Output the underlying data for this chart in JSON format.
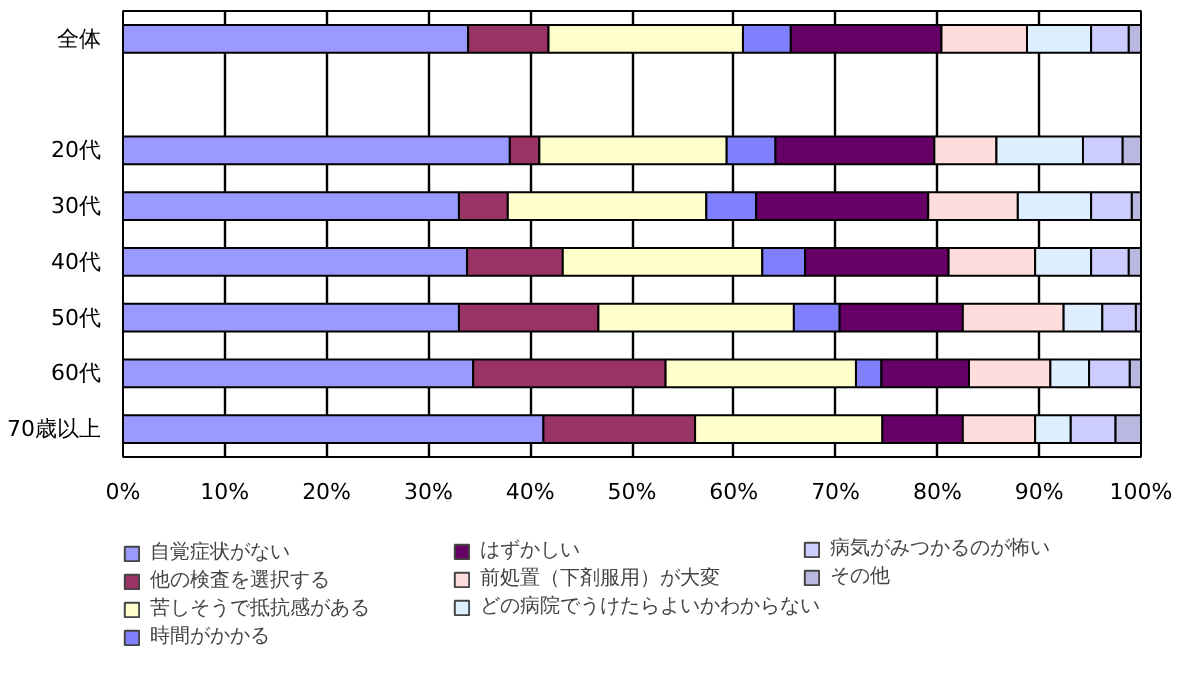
{
  "chart_data": {
    "type": "bar",
    "orientation": "horizontal",
    "stacked": true,
    "categories": [
      "全体",
      null,
      "20代",
      "30代",
      "40代",
      "50代",
      "60代",
      "70歳以上"
    ],
    "series": [
      {
        "name": "自覚症状がない",
        "color": "#9999ff",
        "values": [
          33.9,
          null,
          38.0,
          33.0,
          33.8,
          33.0,
          34.4,
          41.3
        ]
      },
      {
        "name": "他の検査を選択する",
        "color": "#993366",
        "values": [
          7.9,
          null,
          2.9,
          4.8,
          9.4,
          13.7,
          18.9,
          14.9
        ]
      },
      {
        "name": "苦しそうで抵抗感がある",
        "color": "#ffffcc",
        "values": [
          19.1,
          null,
          18.4,
          19.5,
          19.6,
          19.2,
          18.7,
          18.4
        ]
      },
      {
        "name": "時間がかかる",
        "color": "#8080ff",
        "values": [
          4.7,
          null,
          4.8,
          4.9,
          4.2,
          4.5,
          2.5,
          null
        ]
      },
      {
        "name": "はずかしい",
        "color": "#660066",
        "values": [
          14.8,
          null,
          15.6,
          16.9,
          14.1,
          12.1,
          8.6,
          7.9
        ]
      },
      {
        "name": "前処置（下剤服用）が大変",
        "color": "#ffdddd",
        "values": [
          8.4,
          null,
          6.1,
          8.8,
          8.5,
          9.9,
          8.0,
          7.1
        ]
      },
      {
        "name": "どの病院でうけたらよいかわからない",
        "color": "#ddeeff",
        "values": [
          6.3,
          null,
          8.5,
          7.2,
          5.5,
          3.8,
          3.8,
          3.5
        ]
      },
      {
        "name": "病気がみつかるのが怖い",
        "color": "#ccccff",
        "values": [
          3.7,
          null,
          3.9,
          4.0,
          3.7,
          3.3,
          4.0,
          4.4
        ]
      },
      {
        "name": "その他",
        "color": "#b8b8e0",
        "values": [
          1.2,
          null,
          1.8,
          0.9,
          1.2,
          0.5,
          1.1,
          2.5
        ]
      }
    ],
    "xlim": [
      0,
      100
    ],
    "xticks": [
      {
        "value": 0,
        "label": "0%"
      },
      {
        "value": 10,
        "label": "10%"
      },
      {
        "value": 20,
        "label": "20%"
      },
      {
        "value": 30,
        "label": "30%"
      },
      {
        "value": 40,
        "label": "40%"
      },
      {
        "value": 50,
        "label": "50%"
      },
      {
        "value": 60,
        "label": "60%"
      },
      {
        "value": 70,
        "label": "70%"
      },
      {
        "value": 80,
        "label": "80%"
      },
      {
        "value": 90,
        "label": "90%"
      },
      {
        "value": 100,
        "label": "100%"
      }
    ],
    "grid": "x",
    "legend": "bottom"
  }
}
